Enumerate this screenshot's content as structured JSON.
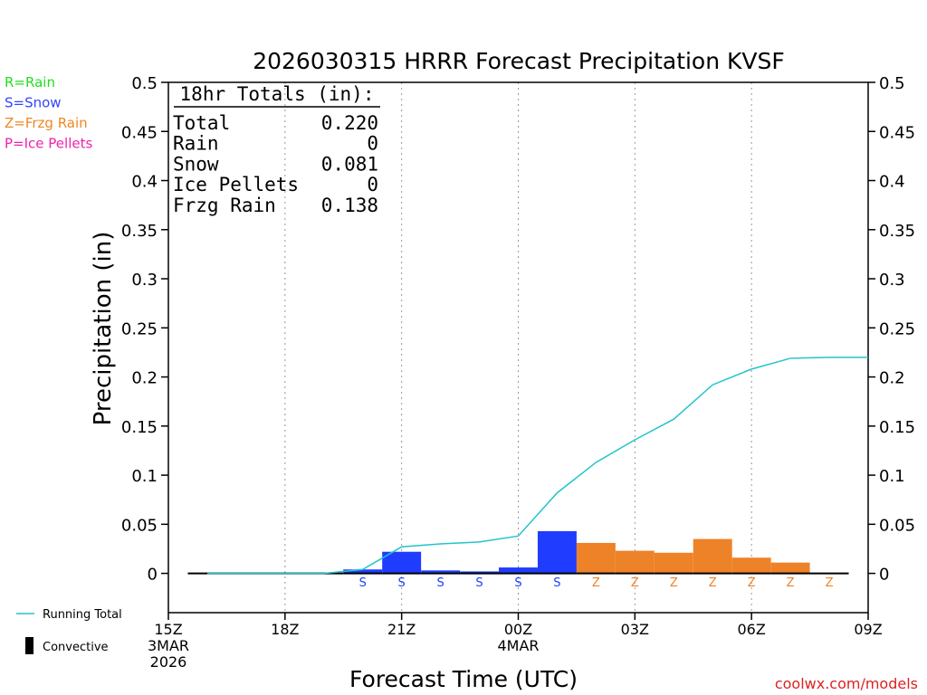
{
  "chart_data": {
    "type": "bar",
    "title": "2026030315 HRRR Forecast Precipitation KVSF",
    "xlabel": "Forecast Time (UTC)",
    "ylabel": "Precipitation (in)",
    "ylim": [
      -0.04,
      0.5
    ],
    "xlim": [
      15,
      33
    ],
    "grid": "dotted vertical lines at 3-hour ticks",
    "yticks": [
      0,
      0.05,
      0.1,
      0.15,
      0.2,
      0.25,
      0.3,
      0.35,
      0.4,
      0.45,
      0.5
    ],
    "ytick_labels": [
      "0",
      "0.05",
      "0.1",
      "0.15",
      "0.2",
      "0.25",
      "0.3",
      "0.35",
      "0.4",
      "0.45",
      "0.5"
    ],
    "xticks": [
      {
        "hour": 15,
        "lines": [
          "15Z",
          "3MAR",
          "2026"
        ]
      },
      {
        "hour": 18,
        "lines": [
          "18Z"
        ]
      },
      {
        "hour": 21,
        "lines": [
          "21Z"
        ]
      },
      {
        "hour": 24,
        "lines": [
          "00Z",
          "4MAR"
        ]
      },
      {
        "hour": 27,
        "lines": [
          "03Z"
        ]
      },
      {
        "hour": 30,
        "lines": [
          "06Z"
        ]
      },
      {
        "hour": 33,
        "lines": [
          "09Z"
        ]
      }
    ],
    "legend_types": [
      {
        "code": "R",
        "text": "R=Rain",
        "color": "#22dd22"
      },
      {
        "code": "S",
        "text": "S=Snow",
        "color": "#3344ff"
      },
      {
        "code": "Z",
        "text": "Z=Frzg Rain",
        "color": "#ee8822"
      },
      {
        "code": "P",
        "text": "P=Ice Pellets",
        "color": "#ee22aa"
      }
    ],
    "bottom_legend": {
      "running_total": "Running Total",
      "convective": "Convective"
    },
    "bar_colors": {
      "S": "#1f3cff",
      "Z": "#ee8228"
    },
    "line_color": "#22c4cc",
    "bars": [
      {
        "hour": 16,
        "value": 0,
        "type": ""
      },
      {
        "hour": 17,
        "value": 0,
        "type": ""
      },
      {
        "hour": 18,
        "value": 0,
        "type": ""
      },
      {
        "hour": 19,
        "value": 0,
        "type": ""
      },
      {
        "hour": 20,
        "value": 0.004,
        "type": "S"
      },
      {
        "hour": 21,
        "value": 0.022,
        "type": "S"
      },
      {
        "hour": 22,
        "value": 0.003,
        "type": "S"
      },
      {
        "hour": 23,
        "value": 0.002,
        "type": "S"
      },
      {
        "hour": 24,
        "value": 0.006,
        "type": "S"
      },
      {
        "hour": 25,
        "value": 0.043,
        "type": "S"
      },
      {
        "hour": 26,
        "value": 0.031,
        "type": "Z"
      },
      {
        "hour": 27,
        "value": 0.023,
        "type": "Z"
      },
      {
        "hour": 28,
        "value": 0.021,
        "type": "Z"
      },
      {
        "hour": 29,
        "value": 0.035,
        "type": "Z"
      },
      {
        "hour": 30,
        "value": 0.016,
        "type": "Z"
      },
      {
        "hour": 31,
        "value": 0.011,
        "type": "Z"
      },
      {
        "hour": 32,
        "value": 0,
        "type": "Z"
      }
    ],
    "running_total": [
      [
        16,
        0
      ],
      [
        17,
        0
      ],
      [
        18,
        0
      ],
      [
        19,
        0
      ],
      [
        20,
        0.004
      ],
      [
        21,
        0.027
      ],
      [
        22,
        0.03
      ],
      [
        23,
        0.032
      ],
      [
        24,
        0.038
      ],
      [
        25,
        0.082
      ],
      [
        26,
        0.113
      ],
      [
        27,
        0.136
      ],
      [
        28,
        0.157
      ],
      [
        29,
        0.192
      ],
      [
        30,
        0.208
      ],
      [
        31,
        0.219
      ],
      [
        32,
        0.22
      ],
      [
        33,
        0.22
      ]
    ],
    "totals_box": {
      "header": "18hr Totals (in):",
      "rows": [
        {
          "label": "Total",
          "value": "0.220"
        },
        {
          "label": "Rain",
          "value": "0"
        },
        {
          "label": "Snow",
          "value": "0.081"
        },
        {
          "label": "Ice Pellets",
          "value": "0"
        },
        {
          "label": "Frzg Rain",
          "value": "0.138"
        }
      ]
    },
    "watermark": "coolwx.com/models"
  }
}
